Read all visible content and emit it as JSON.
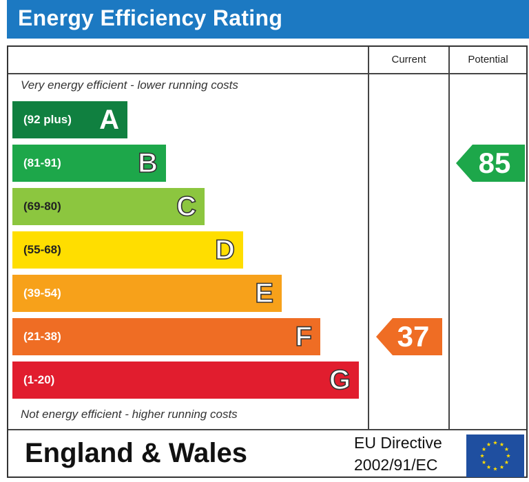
{
  "header": {
    "title": "Energy Efficiency Rating"
  },
  "columns": {
    "current": "Current",
    "potential": "Potential"
  },
  "notes": {
    "top": "Very energy efficient - lower running costs",
    "bottom": "Not energy efficient - higher running costs"
  },
  "footer": {
    "region": "England & Wales",
    "directive_line1": "EU Directive",
    "directive_line2": "2002/91/EC"
  },
  "colors": {
    "header": "#1c79c2",
    "A": "#108040",
    "B": "#1da74a",
    "C": "#8cc63f",
    "D": "#ffde00",
    "E": "#f7a11a",
    "F": "#ef6d24",
    "G": "#e11d2e",
    "eu_flag": "#1f4fa0",
    "eu_stars": "#ffdd00"
  },
  "chart_data": {
    "type": "bar",
    "title": "Energy Efficiency Rating",
    "bands": [
      {
        "letter": "A",
        "range": "(92 plus)",
        "color": "#108040"
      },
      {
        "letter": "B",
        "range": "(81-91)",
        "color": "#1da74a"
      },
      {
        "letter": "C",
        "range": "(69-80)",
        "color": "#8cc63f"
      },
      {
        "letter": "D",
        "range": "(55-68)",
        "color": "#ffde00"
      },
      {
        "letter": "E",
        "range": "(39-54)",
        "color": "#f7a11a"
      },
      {
        "letter": "F",
        "range": "(21-38)",
        "color": "#ef6d24"
      },
      {
        "letter": "G",
        "range": "(1-20)",
        "color": "#e11d2e"
      }
    ],
    "current": {
      "value": 37,
      "band": "F",
      "color": "#ef6d24"
    },
    "potential": {
      "value": 85,
      "band": "B",
      "color": "#1da74a"
    }
  }
}
